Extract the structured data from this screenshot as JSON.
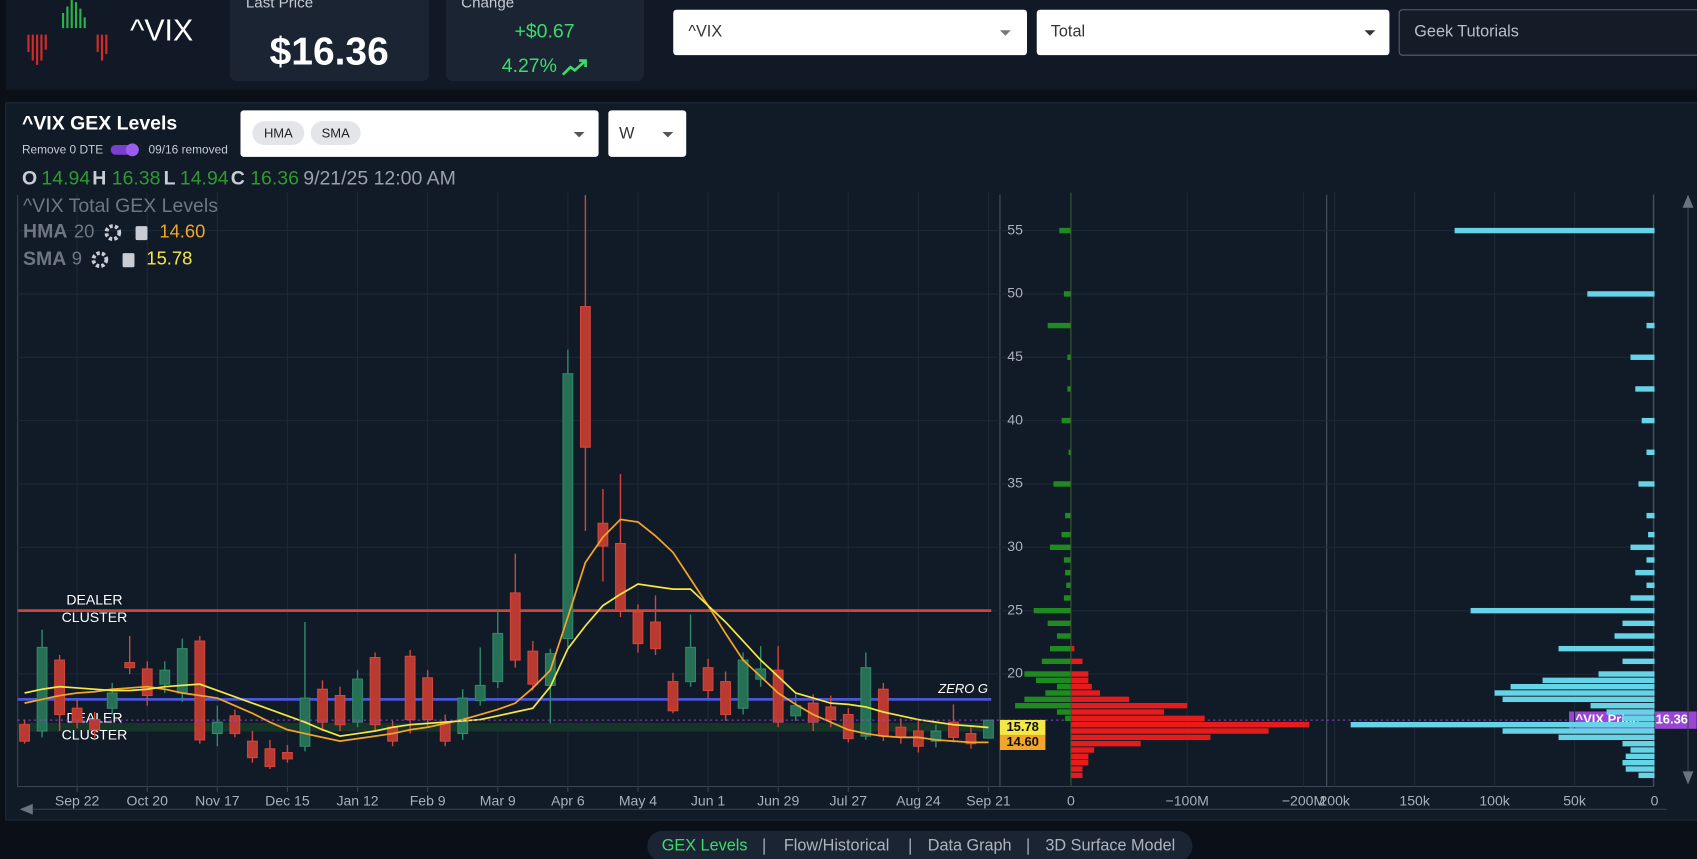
{
  "header": {
    "symbol": "^VIX",
    "last_price_label": "Last Price",
    "last_price": "$16.36",
    "change_label": "Change",
    "change": "+$0.67",
    "change_pct": "4.27%"
  },
  "controls": {
    "symbol_select": "^VIX",
    "type_select": "Total",
    "tutorial_select": "Geek Tutorials",
    "panel_title": "^VIX GEX Levels",
    "remove_label": "Remove 0 DTE",
    "removed_note": "09/16 removed",
    "indicator_chips": [
      "HMA",
      "SMA"
    ],
    "interval": "W"
  },
  "tabs": [
    "GEX Levels",
    "Flow/Historical",
    "Data Graph",
    "3D Surface Model"
  ],
  "chart_data": [
    {
      "type": "candlestick",
      "title": "^VIX Total GEX Levels",
      "ohlc_labels": [
        "O",
        "H",
        "L",
        "C"
      ],
      "date": "9/21/25 12:00 AM",
      "categories": [
        null,
        null,
        null,
        "Sep 22",
        null,
        null,
        null,
        "Oct 20",
        null,
        null,
        null,
        "Nov 17",
        null,
        null,
        null,
        "Dec 15",
        null,
        null,
        null,
        "Jan 12",
        null,
        null,
        null,
        "Feb 9",
        null,
        null,
        null,
        "Mar 9",
        null,
        null,
        null,
        "Apr 6",
        null,
        null,
        null,
        "May 4",
        null,
        null,
        null,
        "Jun 1",
        null,
        null,
        null,
        "Jun 29",
        null,
        null,
        null,
        "Jul 27",
        null,
        null,
        null,
        "Aug 24",
        null,
        null,
        null,
        "Sep 21"
      ],
      "open": [
        16.0,
        15.5,
        21.1,
        17.3,
        16.4,
        17.3,
        20.9,
        20.4,
        19.2,
        18.5,
        22.6,
        15.3,
        16.7,
        14.7,
        14.1,
        13.8,
        14.3,
        18.8,
        18.3,
        16.2,
        21.3,
        15.8,
        21.4,
        19.7,
        16.2,
        15.3,
        17.9,
        19.4,
        26.4,
        21.8,
        19.1,
        22.8,
        49.0,
        31.9,
        30.3,
        24.9,
        24.1,
        19.4,
        19.4,
        20.5,
        19.4,
        17.3,
        19.6,
        20.3,
        16.7,
        17.7,
        17.4,
        16.8,
        15.1,
        18.8,
        15.8,
        15.5,
        14.7,
        16.2,
        15.3,
        14.94
      ],
      "high": [
        16.4,
        23.5,
        21.5,
        18.0,
        17.0,
        19.3,
        23.0,
        21.0,
        21.0,
        22.8,
        23.0,
        17.5,
        17.2,
        15.5,
        14.8,
        14.4,
        24.1,
        19.5,
        19.0,
        20.3,
        21.7,
        16.3,
        21.9,
        20.3,
        16.8,
        18.8,
        22.1,
        25.0,
        29.5,
        22.6,
        22.0,
        45.6,
        57.8,
        34.6,
        35.8,
        25.5,
        26.2,
        20.1,
        24.7,
        21.2,
        20.2,
        21.7,
        22.2,
        22.2,
        18.4,
        18.4,
        18.3,
        17.3,
        21.7,
        19.3,
        16.5,
        16.3,
        16.0,
        17.6,
        15.8,
        16.38
      ],
      "low": [
        14.5,
        15.0,
        15.5,
        15.7,
        15.0,
        16.8,
        20.0,
        17.5,
        18.5,
        17.8,
        14.5,
        14.3,
        15.0,
        13.0,
        12.5,
        13.0,
        13.9,
        15.5,
        15.5,
        15.8,
        15.5,
        14.3,
        15.3,
        15.8,
        14.3,
        14.8,
        17.5,
        18.9,
        20.5,
        18.7,
        16.1,
        22.1,
        31.3,
        27.3,
        24.5,
        21.7,
        21.5,
        16.9,
        19.0,
        18.1,
        16.3,
        16.8,
        19.0,
        15.8,
        16.3,
        15.5,
        15.8,
        14.6,
        14.8,
        14.7,
        14.5,
        13.8,
        14.2,
        14.6,
        14.1,
        14.94
      ],
      "close": [
        14.7,
        22.1,
        16.8,
        16.2,
        15.6,
        18.5,
        20.5,
        18.3,
        20.3,
        22.0,
        14.8,
        16.2,
        15.3,
        13.4,
        12.7,
        13.3,
        18.1,
        16.2,
        16.0,
        19.6,
        16.0,
        14.7,
        16.4,
        16.4,
        14.7,
        18.1,
        19.1,
        23.2,
        21.1,
        19.2,
        21.6,
        43.7,
        37.9,
        30.1,
        25.0,
        22.4,
        22.0,
        17.1,
        22.1,
        18.7,
        16.8,
        21.1,
        20.4,
        16.2,
        17.5,
        16.2,
        16.4,
        14.9,
        20.5,
        15.1,
        15.0,
        14.3,
        15.5,
        15.0,
        14.5,
        16.36
      ],
      "up_color": "#2f8a68",
      "down_color": "#d2463b",
      "series": [
        {
          "name": "HMA",
          "period": 20,
          "color": "#f2a52b",
          "current": {
            "value": 14.6,
            "label": "14.60"
          },
          "values": [
            17.7,
            18.0,
            18.3,
            18.5,
            18.6,
            18.8,
            18.9,
            19.0,
            18.8,
            18.5,
            18.3,
            18.1,
            17.5,
            16.9,
            16.2,
            15.6,
            15.3,
            15.0,
            14.7,
            14.9,
            15.1,
            15.3,
            15.6,
            15.8,
            16.1,
            16.4,
            16.8,
            17.2,
            17.7,
            18.9,
            20.3,
            24.5,
            28.8,
            30.8,
            32.2,
            32.0,
            30.9,
            29.6,
            27.5,
            25.4,
            23.2,
            21.1,
            19.8,
            18.5,
            17.6,
            16.8,
            16.2,
            15.6,
            15.3,
            15.1,
            15.0,
            15.0,
            14.8,
            14.7,
            14.6,
            14.6
          ]
        },
        {
          "name": "SMA",
          "period": 9,
          "color": "#f3e845",
          "current": 15.78,
          "values": [
            18.5,
            18.8,
            19.0,
            18.9,
            18.8,
            18.7,
            18.7,
            18.8,
            19.0,
            19.1,
            19.2,
            18.7,
            18.2,
            17.7,
            17.2,
            16.7,
            16.2,
            15.6,
            15.1,
            15.3,
            15.5,
            15.8,
            16.0,
            16.1,
            16.2,
            16.3,
            16.4,
            16.7,
            17.0,
            17.3,
            19.0,
            22.0,
            23.8,
            25.4,
            26.3,
            27.1,
            26.9,
            26.7,
            26.7,
            25.4,
            24.1,
            22.6,
            21.1,
            19.8,
            18.5,
            18.1,
            17.7,
            17.6,
            17.4,
            17.0,
            16.7,
            16.4,
            16.2,
            16.0,
            15.9,
            15.78
          ]
        }
      ],
      "levels": [
        {
          "value": 25,
          "color": "#c9483c",
          "label": [
            "DEALER",
            "CLUSTER"
          ]
        },
        {
          "value": 18,
          "color": "#4a55d8",
          "label": [
            "ZERO G"
          ]
        },
        {
          "value": 15.8,
          "color": "#163528",
          "label": [
            "DEALER",
            "CLUSTER"
          ]
        }
      ],
      "price_label": "^VIX Price",
      "price_color": "#9a45d6",
      "ylim": [
        11,
        58
      ],
      "yticks": [
        20,
        25,
        30,
        35,
        40,
        45,
        50,
        55
      ],
      "grid": true
    },
    {
      "type": "bar",
      "orientation": "horizontal",
      "y": [
        12,
        12.5,
        13,
        13.5,
        14,
        14.5,
        15,
        15.5,
        16,
        16.5,
        17,
        17.5,
        18,
        18.5,
        19,
        19.5,
        20,
        21,
        22,
        23,
        24,
        25,
        26,
        27,
        28,
        29,
        30,
        31,
        32.5,
        35,
        37.5,
        40,
        42.5,
        45,
        47.5,
        50,
        55
      ],
      "series": [
        {
          "color": "#1f8a1f",
          "values": [
            0,
            0,
            0,
            0,
            0,
            0,
            0,
            0,
            0,
            5000000,
            12000000,
            48000000,
            40000000,
            22000000,
            12000000,
            30000000,
            40000000,
            25000000,
            18000000,
            12000000,
            20000000,
            32000000,
            6000000,
            4000000,
            5000000,
            6000000,
            18000000,
            8000000,
            5000000,
            15000000,
            2000000,
            8000000,
            3000000,
            3000000,
            20000000,
            6000000,
            10000000
          ]
        },
        {
          "color": "#e61b1b",
          "values": [
            -10000000,
            -10000000,
            -15000000,
            -15000000,
            -20000000,
            -60000000,
            -120000000,
            -170000000,
            -205000000,
            -115000000,
            -80000000,
            -100000000,
            -50000000,
            -25000000,
            -18000000,
            -15000000,
            -15000000,
            -10000000,
            -3000000,
            0,
            0,
            0,
            0,
            0,
            0,
            0,
            0,
            0,
            0,
            0,
            0,
            0,
            0,
            0,
            0,
            0,
            0
          ]
        }
      ],
      "xlim": [
        61000000,
        -219000000
      ],
      "xticks": [
        0,
        {
          "value": -100000000,
          "label": "−100M"
        },
        {
          "value": -200000000,
          "label": "−200M"
        }
      ],
      "ylim": [
        11,
        58
      ],
      "yticks": [
        20,
        25,
        30,
        35,
        40,
        45,
        50,
        55
      ],
      "grid": true
    },
    {
      "type": "bar",
      "orientation": "horizontal",
      "y": [
        12,
        12.5,
        13,
        13.5,
        14,
        14.5,
        15,
        15.5,
        16,
        16.5,
        17,
        17.5,
        18,
        18.5,
        19,
        19.5,
        20,
        21,
        22,
        23,
        24,
        25,
        26,
        27,
        28,
        29,
        30,
        31,
        32.5,
        35,
        37.5,
        40,
        42.5,
        45,
        47.5,
        50,
        55
      ],
      "color": "#67d3e6",
      "values": [
        10000,
        18000,
        20000,
        18000,
        15000,
        20000,
        60000,
        95000,
        190000,
        20000,
        30000,
        40000,
        95000,
        100000,
        90000,
        70000,
        35000,
        20000,
        60000,
        25000,
        20000,
        115000,
        15000,
        5000,
        12000,
        5000,
        15000,
        4000,
        5000,
        10000,
        5000,
        8000,
        12000,
        15000,
        5000,
        42000,
        125000
      ],
      "xlim": [
        205000,
        0
      ],
      "xticks": [
        {
          "value": 200000,
          "label": "200k"
        },
        {
          "value": 150000,
          "label": "150k"
        },
        {
          "value": 100000,
          "label": "100k"
        },
        {
          "value": 50000,
          "label": "50k"
        },
        0
      ],
      "ylim": [
        11,
        58
      ]
    }
  ]
}
